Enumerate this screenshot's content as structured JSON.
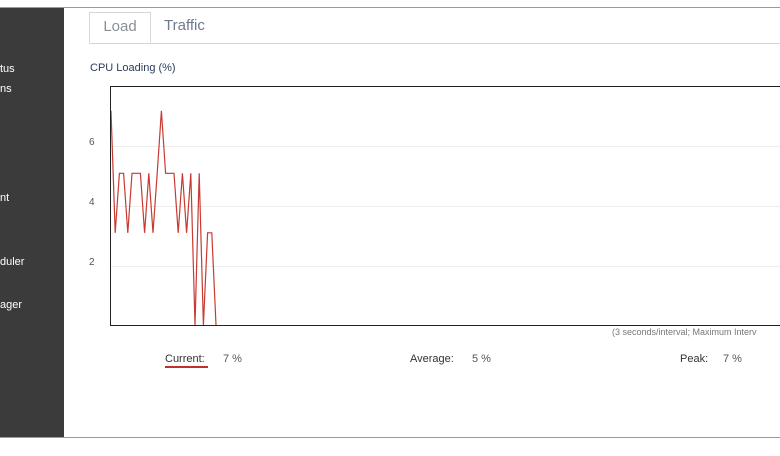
{
  "sidebar": {
    "items": [
      {
        "label": "tus"
      },
      {
        "label": "ns"
      },
      {
        "label": "nt"
      },
      {
        "label": "duler"
      },
      {
        "label": "ager"
      }
    ]
  },
  "tabs": [
    {
      "label": "Load",
      "active": true
    },
    {
      "label": "Traffic",
      "active": false
    }
  ],
  "chart": {
    "title": "CPU Loading (%)",
    "interval_note": "(3 seconds/interval; Maximum Interv"
  },
  "chart_data": {
    "type": "line",
    "title": "CPU Loading (%)",
    "xlabel": "",
    "ylabel": "",
    "yticks": [
      "6",
      "4",
      "2"
    ],
    "ylim": [
      0,
      8
    ],
    "grid": true,
    "series": [
      {
        "color": "#c83a32",
        "values": [
          7.2,
          3.1,
          5.1,
          5.1,
          3.1,
          5.1,
          5.1,
          5.1,
          3.1,
          5.1,
          3.1,
          5.1,
          7.2,
          5.1,
          5.1,
          5.1,
          3.1,
          5.1,
          3.1,
          5.1,
          0,
          5.1,
          0,
          3.1,
          3.1,
          0
        ]
      }
    ]
  },
  "stats": {
    "current_label": "Current:",
    "current_value": "7 %",
    "average_label": "Average:",
    "average_value": "5 %",
    "peak_label": "Peak:",
    "peak_value": "7 %"
  },
  "colors": {
    "sidebar_bg": "#3b3b3b",
    "line": "#c83a32",
    "underline": "#c0312b"
  }
}
